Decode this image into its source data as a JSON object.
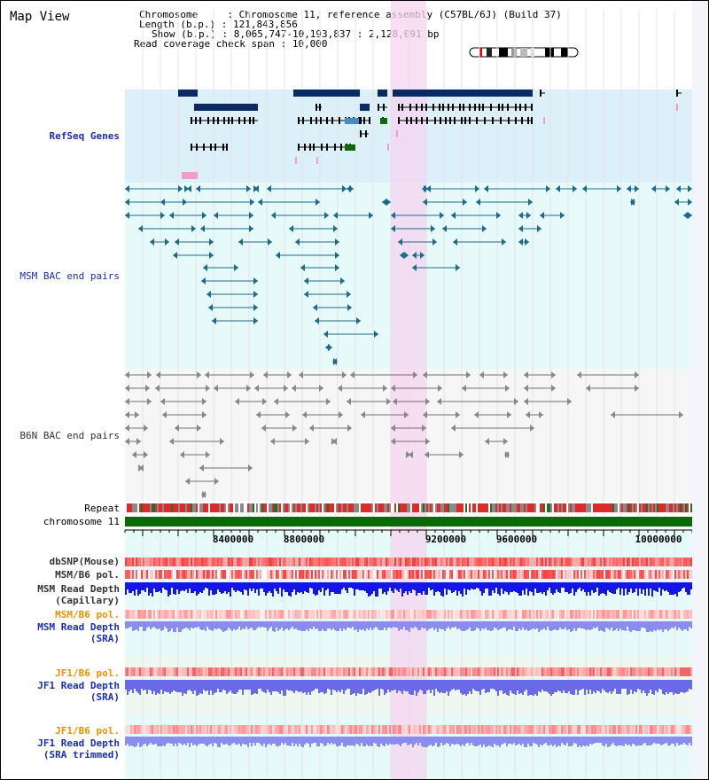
{
  "title": "Map View",
  "header": {
    "chromosome_label": "Chromosome     : ",
    "chromosome_value": "Chromosome 11, reference assembly (C57BL/6J) (Build 37)",
    "length_label": "Length (b.p.) : ",
    "length_value": "121,843,856",
    "show_label": "Show (b.p.) : ",
    "show_value": "8,065,747-10,193,837 : 2,128,091 bp",
    "coverage_label": "Read coverage check span : ",
    "coverage_value": "10,000"
  },
  "tracks": {
    "refseq": "RefSeq Genes",
    "msm_bac": "MSM BAC end pairs",
    "b6n_bac": "B6N BAC end pairs",
    "repeat": "Repeat",
    "chromosome": "chromosome 11",
    "dbsnp": "dbSNP(Mouse)",
    "msm_b6_pol": "MSM/B6 pol.",
    "msm_depth_cap_1": "MSM Read Depth",
    "msm_depth_cap_2": "(Capillary)",
    "msm_b6_pol_sra": "MSM/B6 pol.",
    "msm_depth_sra_1": "MSM Read Depth",
    "msm_depth_sra_2": "(SRA)",
    "jf1_b6_pol": "JF1/B6 pol.",
    "jf1_depth_1": "JF1 Read Depth",
    "jf1_depth_2": "(SRA)",
    "jf1_b6_pol_trim": "JF1/B6 pol.",
    "jf1_trim_1": "JF1 Read Depth",
    "jf1_trim_2": "(SRA trimmed)"
  },
  "axis": {
    "ticks": [
      "8400000",
      "8800000",
      "9200000",
      "9600000",
      "10000000"
    ]
  },
  "colors": {
    "refseq_bg": "#dcf0fa",
    "msm_bg": "#e6fafa",
    "b6n_bg": "#f6f6f6",
    "highlight": "#f5d4f0",
    "gene_dark": "#0a2a64",
    "msm_line": "#1e6a8a",
    "b6n_line": "#707070",
    "label_blue": "#1b2fa8",
    "label_orange": "#e59400",
    "depth_blue": "#1515e6",
    "depth_light": "#8c8cf0"
  }
}
